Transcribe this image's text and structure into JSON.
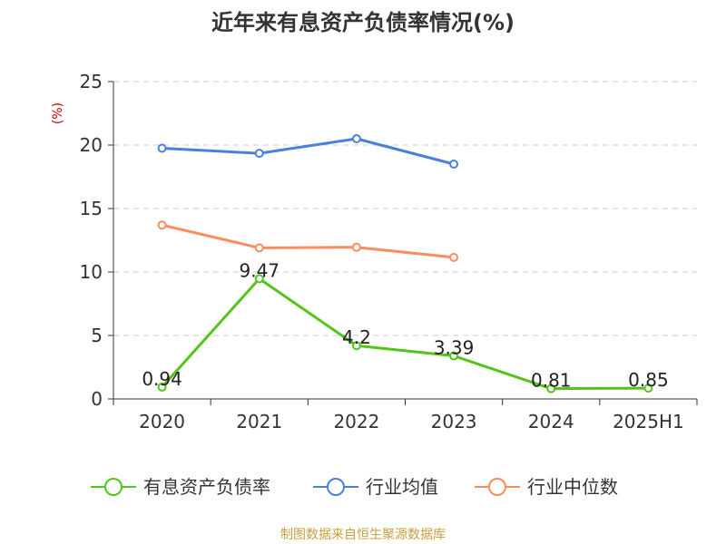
{
  "chart_data": {
    "type": "line",
    "title": "近年来有息资产负债率情况(%)",
    "ylabel": "(%)",
    "categories": [
      "2020",
      "2021",
      "2022",
      "2023",
      "2024",
      "2025H1"
    ],
    "yticks": [
      "0",
      "5",
      "10",
      "15",
      "20",
      "25"
    ],
    "ylim": [
      0,
      25
    ],
    "grid": true,
    "legend_position": "bottom",
    "series": [
      {
        "name": "有息资产负债率",
        "color": "#52c41a",
        "values": [
          0.94,
          9.47,
          4.2,
          3.39,
          0.81,
          0.85
        ],
        "labels": [
          "0.94",
          "9.47",
          "4.2",
          "3.39",
          "0.81",
          "0.85"
        ]
      },
      {
        "name": "行业均值",
        "color": "#4a7fdc",
        "values": [
          19.75,
          19.35,
          20.5,
          18.5,
          null,
          null
        ]
      },
      {
        "name": "行业中位数",
        "color": "#f98d5e",
        "values": [
          13.7,
          11.9,
          11.95,
          11.15,
          null,
          null
        ]
      }
    ],
    "source": "制图数据来自恒生聚源数据库",
    "colors": {
      "text": "#333333",
      "ylabel": "#cc0000",
      "source": "#c8a03c",
      "grid": "#cccccc"
    }
  }
}
